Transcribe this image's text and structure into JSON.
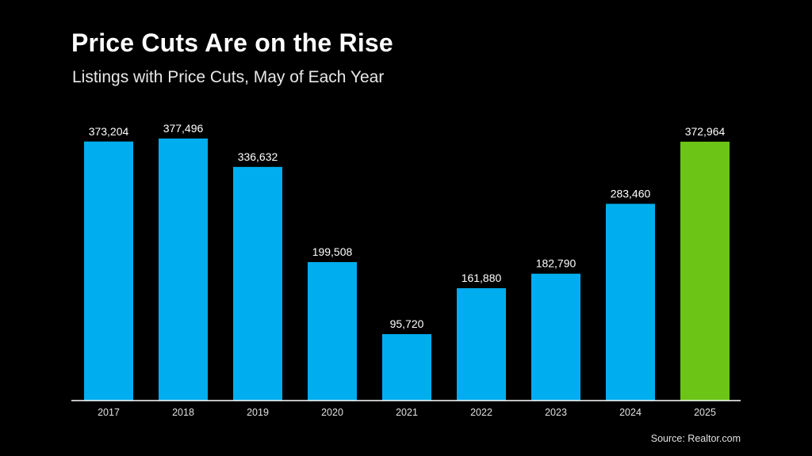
{
  "chart_data": {
    "type": "bar",
    "title": "Price Cuts Are on the Rise",
    "subtitle": "Listings with Price Cuts, May of Each Year",
    "categories": [
      "2017",
      "2018",
      "2019",
      "2020",
      "2021",
      "2022",
      "2023",
      "2024",
      "2025"
    ],
    "values": [
      373204,
      377496,
      336632,
      199508,
      95720,
      161880,
      182790,
      283460,
      372964
    ],
    "value_labels": [
      "373,204",
      "377,496",
      "336,632",
      "199,508",
      "95,720",
      "161,880",
      "182,790",
      "283,460",
      "372,964"
    ],
    "highlight_index": 8,
    "xlabel": "",
    "ylabel": "",
    "ylim": [
      0,
      377496
    ],
    "grid": false,
    "colors": {
      "bar": "#00aeef",
      "highlight": "#6cc417",
      "axis": "#ffffff",
      "background": "#000000"
    },
    "source": "Source: Realtor.com"
  }
}
